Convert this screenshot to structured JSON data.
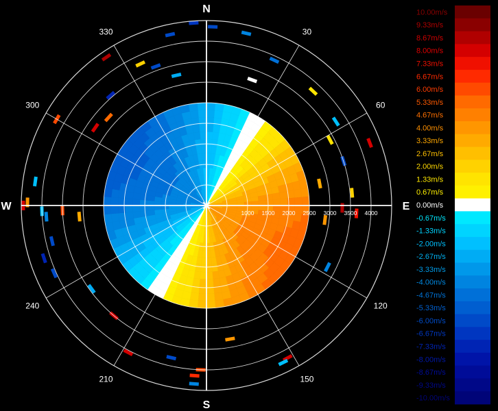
{
  "chart_data": {
    "type": "heatmap",
    "subtype": "polar-ppi",
    "title": "",
    "cardinal_labels": [
      "N",
      "E",
      "S",
      "W"
    ],
    "bearing_labels": [
      "30",
      "60",
      "120",
      "150",
      "210",
      "240",
      "300",
      "330"
    ],
    "bearing_values": [
      30,
      60,
      120,
      150,
      210,
      240,
      300,
      330
    ],
    "range_labels": [
      "1000",
      "1500",
      "2000",
      "2500",
      "3000",
      "3500",
      "4000"
    ],
    "range_values": [
      1000,
      1500,
      2000,
      2500,
      3000,
      3500,
      4000
    ],
    "range_max": 4500,
    "ring_values": [
      500,
      1000,
      1500,
      2000,
      2500,
      3000,
      3500,
      4000,
      4500
    ],
    "colorbar": {
      "labels": [
        "10.00m/s",
        "9.33m/s",
        "8.67m/s",
        "8.00m/s",
        "7.33m/s",
        "6.67m/s",
        "6.00m/s",
        "5.33m/s",
        "4.67m/s",
        "4.00m/s",
        "3.33m/s",
        "2.67m/s",
        "2.00m/s",
        "1.33m/s",
        "0.67m/s",
        "0.00m/s",
        "-0.67m/s",
        "-1.33m/s",
        "-2.00m/s",
        "-2.67m/s",
        "-3.33m/s",
        "-4.00m/s",
        "-4.67m/s",
        "-5.33m/s",
        "-6.00m/s",
        "-6.67m/s",
        "-7.33m/s",
        "-8.00m/s",
        "-8.67m/s",
        "-9.33m/s",
        "-10.00m/s"
      ],
      "colors": [
        "#6a0000",
        "#8a0000",
        "#b00000",
        "#d40000",
        "#f01000",
        "#ff2a00",
        "#ff4a00",
        "#ff6a00",
        "#ff8000",
        "#ff9600",
        "#ffaa00",
        "#ffbf00",
        "#ffd200",
        "#ffe400",
        "#fff000",
        "#ffffff",
        "#00e8ff",
        "#00d4ff",
        "#00c0ff",
        "#00acf4",
        "#0098ea",
        "#0084e0",
        "#0070d8",
        "#005ed0",
        "#004ac8",
        "#0036c0",
        "#0024b4",
        "#0014a8",
        "#000c98",
        "#000888",
        "#000478"
      ],
      "label_colors": [
        "#8a0000",
        "#b00000",
        "#d00000",
        "#e00000",
        "#f01000",
        "#ff2a00",
        "#ff3c00",
        "#ff5a00",
        "#ff7000",
        "#ff9000",
        "#ffa800",
        "#ffc000",
        "#ffd800",
        "#ffe800",
        "#fff000",
        "#ffffff",
        "#00e8ff",
        "#00d4ff",
        "#00c0ff",
        "#00b0f0",
        "#009ce8",
        "#0088e0",
        "#0074d8",
        "#0060d0",
        "#004cc8",
        "#0038c0",
        "#0024b4",
        "#0018a8",
        "#000c98",
        "#000888",
        "#000478"
      ]
    },
    "velocity_field": {
      "unit": "m/s",
      "approx_max_range_m": 2500,
      "description_free": true,
      "peak_positive_bearing_deg": 120,
      "peak_positive_mps": 5.0,
      "peak_negative_bearing_deg": 300,
      "peak_negative_mps": -5.0,
      "zero_line_bearings_deg": [
        30,
        210
      ]
    },
    "sparse_returns": [
      {
        "bearing": 2,
        "range": 4350,
        "v": -6.0
      },
      {
        "bearing": 13,
        "range": 4300,
        "v": -4.0
      },
      {
        "bearing": 25,
        "range": 3900,
        "v": -4.67
      },
      {
        "bearing": 20,
        "range": 3250,
        "v": 0.0
      },
      {
        "bearing": 43,
        "range": 3800,
        "v": 1.33
      },
      {
        "bearing": 57,
        "range": 3750,
        "v": -2.0
      },
      {
        "bearing": 62,
        "range": 3400,
        "v": 1.33
      },
      {
        "bearing": 69,
        "range": 4250,
        "v": 8.0
      },
      {
        "bearing": 72,
        "range": 3500,
        "v": -6.0
      },
      {
        "bearing": 79,
        "range": 2800,
        "v": 3.33
      },
      {
        "bearing": 85,
        "range": 3550,
        "v": 2.0
      },
      {
        "bearing": 91,
        "range": 3300,
        "v": 8.67
      },
      {
        "bearing": 93,
        "range": 3650,
        "v": 7.33
      },
      {
        "bearing": 97,
        "range": 2900,
        "v": 4.0
      },
      {
        "bearing": 117,
        "range": 3300,
        "v": -4.0
      },
      {
        "bearing": 152,
        "range": 4200,
        "v": 8.0
      },
      {
        "bearing": 154,
        "range": 4250,
        "v": -2.0
      },
      {
        "bearing": 170,
        "range": 3300,
        "v": 4.0
      },
      {
        "bearing": 182,
        "range": 4000,
        "v": 6.0
      },
      {
        "bearing": 184,
        "range": 4150,
        "v": 6.67
      },
      {
        "bearing": 184,
        "range": 4350,
        "v": -4.0
      },
      {
        "bearing": 193,
        "range": 3800,
        "v": -6.0
      },
      {
        "bearing": 208,
        "range": 4050,
        "v": 8.0
      },
      {
        "bearing": 220,
        "range": 3500,
        "v": 8.0
      },
      {
        "bearing": 234,
        "range": 3450,
        "v": -2.67
      },
      {
        "bearing": 246,
        "range": 4050,
        "v": -6.0
      },
      {
        "bearing": 252,
        "range": 4150,
        "v": -7.33
      },
      {
        "bearing": 257,
        "range": 3850,
        "v": -6.0
      },
      {
        "bearing": 266,
        "range": 3900,
        "v": -4.0
      },
      {
        "bearing": 268,
        "range": 4000,
        "v": -2.0
      },
      {
        "bearing": 270,
        "range": 4450,
        "v": 8.0
      },
      {
        "bearing": 271,
        "range": 4350,
        "v": 4.0
      },
      {
        "bearing": 268,
        "range": 3500,
        "v": 6.0
      },
      {
        "bearing": 265,
        "range": 3100,
        "v": 3.33
      },
      {
        "bearing": 278,
        "range": 4200,
        "v": -2.0
      },
      {
        "bearing": 300,
        "range": 4200,
        "v": 6.0
      },
      {
        "bearing": 305,
        "range": 3300,
        "v": 8.0
      },
      {
        "bearing": 312,
        "range": 3200,
        "v": 5.33
      },
      {
        "bearing": 319,
        "range": 3550,
        "v": -7.33
      },
      {
        "bearing": 326,
        "range": 4350,
        "v": 8.67
      },
      {
        "bearing": 335,
        "range": 3800,
        "v": 2.0
      },
      {
        "bearing": 340,
        "range": 3600,
        "v": -6.0
      },
      {
        "bearing": 348,
        "range": 4250,
        "v": -6.0
      },
      {
        "bearing": 356,
        "range": 4450,
        "v": -6.67
      },
      {
        "bearing": 347,
        "range": 3250,
        "v": -2.67
      }
    ]
  }
}
